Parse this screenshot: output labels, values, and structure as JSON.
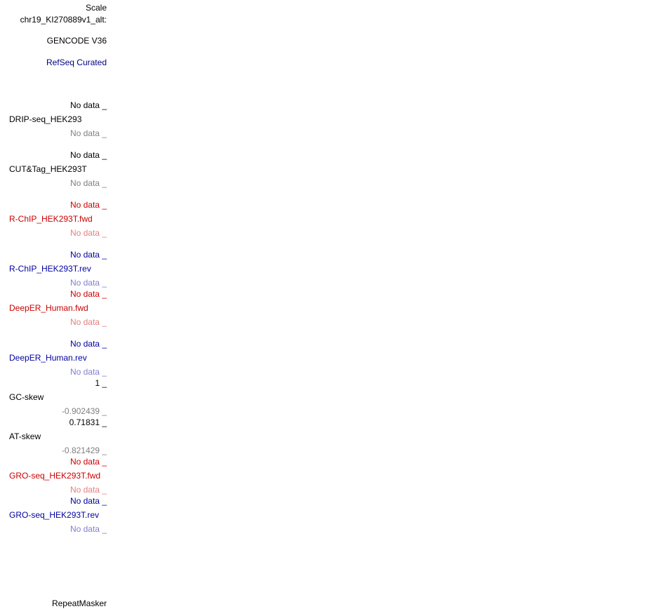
{
  "header": {
    "scale": "Scale",
    "chrom": "chr19_KI270889v1_alt:"
  },
  "tracks": {
    "gencode": "GENCODE V36",
    "refseq": "RefSeq Curated",
    "drip": {
      "top": "No data _",
      "name": "DRIP-seq_HEK293",
      "bottom": "No data _"
    },
    "cuttag": {
      "top": "No data _",
      "name": "CUT&Tag_HEK293T",
      "bottom": "No data _"
    },
    "rchip_fwd": {
      "top": "No data _",
      "name": "R-ChIP_HEK293T.fwd",
      "bottom": "No data _"
    },
    "rchip_rev": {
      "top": "No data _",
      "name": "R-ChIP_HEK293T.rev",
      "bottom": "No data _"
    },
    "deeper_fwd": {
      "top": "No data _",
      "name": "DeepER_Human.fwd",
      "bottom": "No data _"
    },
    "deeper_rev": {
      "top": "No data _",
      "name": "DeepER_Human.rev",
      "bottom": "No data _"
    },
    "gcskew": {
      "top": "1 _",
      "name": "GC-skew",
      "bottom": "-0.902439 _"
    },
    "atskew": {
      "top": "0.71831 _",
      "name": "AT-skew",
      "bottom": "-0.821429 _"
    },
    "gro_fwd": {
      "top": "No data _",
      "name": "GRO-seq_HEK293T.fwd",
      "bottom": "No data _"
    },
    "gro_rev": {
      "top": "No data _",
      "name": "GRO-seq_HEK293T.rev",
      "bottom": "No data _"
    },
    "repeatmasker": "RepeatMasker"
  },
  "colors": {
    "black": "#000000",
    "grey": "#808080",
    "red": "#cc0000",
    "blue": "#0000a0",
    "navy": "#000080"
  }
}
